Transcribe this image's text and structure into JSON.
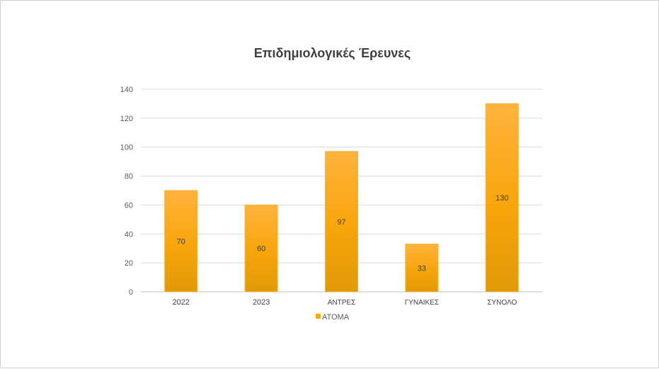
{
  "chart_data": {
    "type": "bar",
    "title": "Επιδημιολογικές Έρευνες",
    "categories": [
      "2022",
      "2023",
      "ΑΝΤΡΕΣ",
      "ΓΥΝΑΙΚΕΣ",
      "ΣΥΝΟΛΟ"
    ],
    "series": [
      {
        "name": "ΑΤΟΜΑ",
        "values": [
          70,
          60,
          97,
          33,
          130
        ]
      }
    ],
    "ylim": [
      0,
      140
    ],
    "yticks": [
      0,
      20,
      40,
      60,
      80,
      100,
      120,
      140
    ],
    "grid": true,
    "data_labels": true,
    "legend": "bottom",
    "colors": {
      "bar_top": "#FFB33C",
      "bar_mid": "#F7A50A",
      "bar_bottom": "#E09A06",
      "grid": "#d9d9d9"
    }
  }
}
